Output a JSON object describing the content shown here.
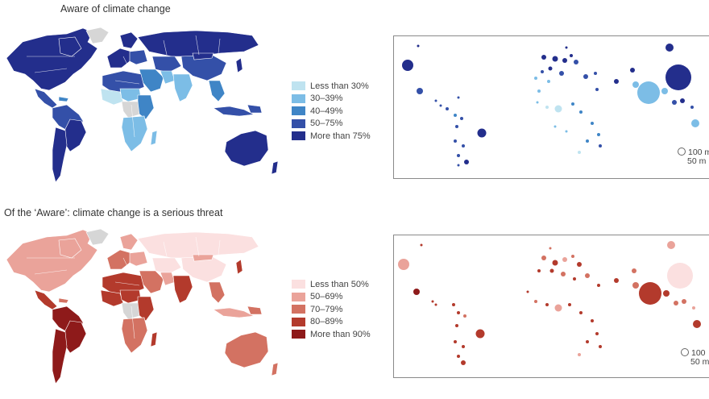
{
  "panels": [
    {
      "title": "Aware of climate change",
      "palette": {
        "land_base": "#27308f",
        "border": "#ffffff",
        "nodata": "#d6d6d6",
        "c1": "#bfe3f0",
        "c2": "#7cbde6",
        "c3": "#3f85c6",
        "c4": "#3450a8",
        "c5": "#232e8c"
      },
      "legend": [
        {
          "label": "Less than 30%",
          "color": "#bfe3f0"
        },
        {
          "label": "30–39%",
          "color": "#7cbde6"
        },
        {
          "label": "40–49%",
          "color": "#3f85c6"
        },
        {
          "label": "50–75%",
          "color": "#3450a8"
        },
        {
          "label": "More than 75%",
          "color": "#232e8c"
        }
      ],
      "size_key": [
        "100 m",
        "50 m"
      ]
    },
    {
      "title": "Of the ‘Aware’: climate change is a serious threat",
      "palette": {
        "land_base": "#f9dede",
        "border": "#ffffff",
        "nodata": "#d6d6d6",
        "c1": "#fbe0e0",
        "c2": "#eaa39a",
        "c3": "#d37262",
        "c4": "#b33a2c",
        "c5": "#8e1a1a"
      },
      "legend": [
        {
          "label": "Less than 50%",
          "color": "#fbe0e0"
        },
        {
          "label": "50–69%",
          "color": "#eaa39a"
        },
        {
          "label": "70–79%",
          "color": "#d37262"
        },
        {
          "label": "80–89%",
          "color": "#b33a2c"
        },
        {
          "label": "More than 90%",
          "color": "#8e1a1a"
        }
      ],
      "size_key": [
        "100",
        "50 m"
      ]
    }
  ]
}
